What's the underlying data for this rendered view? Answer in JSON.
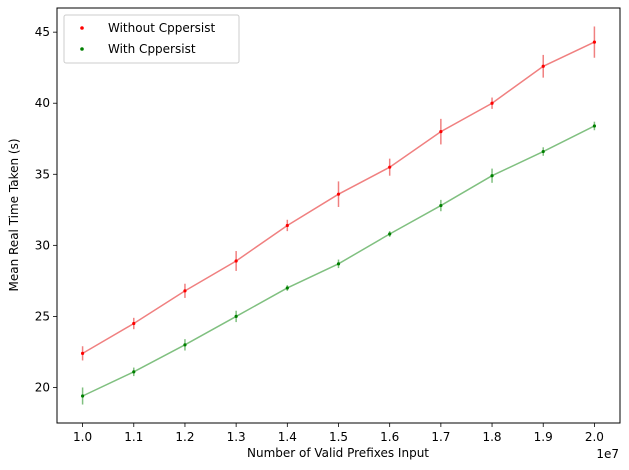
{
  "chart_data": {
    "type": "line",
    "xlabel": "Number of Valid Prefixes Input",
    "ylabel": "Mean Real Time Taken (s)",
    "x_offset_text": "1e7",
    "x": [
      1.0,
      1.1,
      1.2,
      1.3,
      1.4,
      1.5,
      1.6,
      1.7,
      1.8,
      1.9,
      2.0
    ],
    "xtick_labels": [
      "1.0",
      "1.1",
      "1.2",
      "1.3",
      "1.4",
      "1.5",
      "1.6",
      "1.7",
      "1.8",
      "1.9",
      "2.0"
    ],
    "xlim": [
      0.95,
      2.05
    ],
    "ylim": [
      17.5,
      46.7
    ],
    "yticks": [
      20,
      25,
      30,
      35,
      40,
      45
    ],
    "ytick_labels": [
      "20",
      "25",
      "30",
      "35",
      "40",
      "45"
    ],
    "grid": false,
    "legend_position": "top-left",
    "series": [
      {
        "name": "Without Cppersist",
        "color": "#ff0000",
        "line_color": "#f08080",
        "values": [
          22.4,
          24.5,
          26.8,
          28.9,
          31.4,
          33.6,
          35.5,
          38.0,
          40.0,
          42.6,
          44.3
        ],
        "errors": [
          0.5,
          0.4,
          0.5,
          0.7,
          0.4,
          0.9,
          0.6,
          0.9,
          0.4,
          0.8,
          1.1
        ]
      },
      {
        "name": "With Cppersist",
        "color": "#008000",
        "line_color": "#80c080",
        "values": [
          19.4,
          21.1,
          23.0,
          25.0,
          27.0,
          28.7,
          30.8,
          32.8,
          34.9,
          36.6,
          38.4
        ],
        "errors": [
          0.6,
          0.3,
          0.4,
          0.4,
          0.2,
          0.3,
          0.2,
          0.4,
          0.5,
          0.3,
          0.3
        ]
      }
    ]
  }
}
